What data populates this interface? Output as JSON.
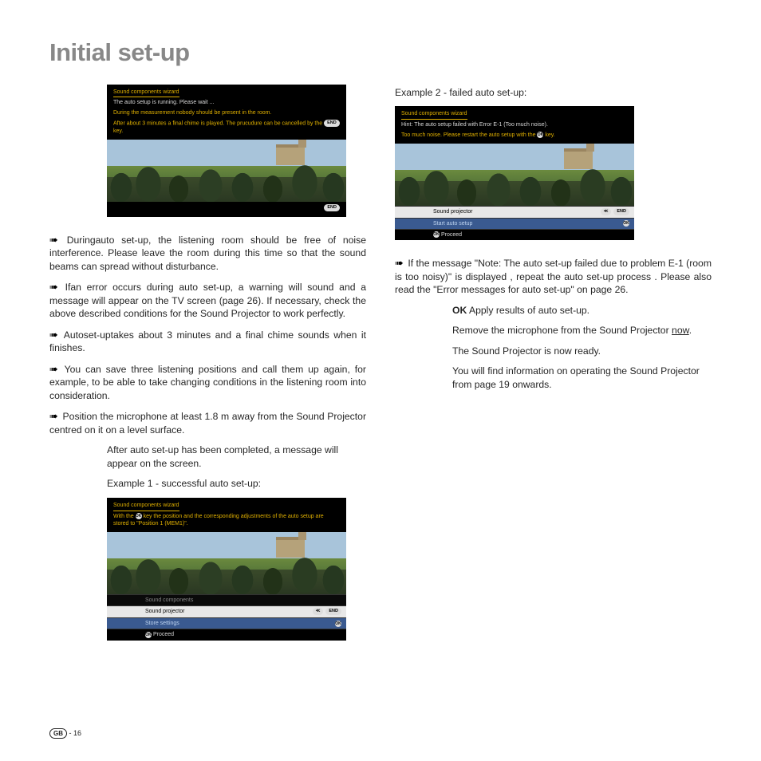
{
  "page": {
    "title": "Initial set-up",
    "footer_region": "GB",
    "footer_page": "16"
  },
  "left": {
    "p1": "Duringauto set-up, the listening room should be free of noise interference. Please leave the room during this time so that the sound beams can spread without disturbance.",
    "p2": "Ifan error occurs during auto set-up, a warning will sound and a message will appear on the TV screen (page 26). If necessary, check the above described conditions for the Sound Projector to work perfectly.",
    "p3": "Autoset-uptakes about 3 minutes and a final chime sounds when it finishes.",
    "p4": "You can save three listening positions and call them up again, for example, to be able to take changing conditions in the listening room into consideration.",
    "p5": "Position the microphone at least 1.8 m away from the Sound Projector centred on it on a level surface.",
    "indent1": "After auto set-up has been completed, a message will appear on the screen.",
    "example1_label": "Example 1 - successful auto set-up:"
  },
  "right": {
    "example2_label": "Example 2 - failed auto set-up:",
    "p1": "If the message \"Note: The auto set-up failed due to problem E-1 (room is too noisy)\" is displayed , repeat the auto set-up process . Please also read the \"Error messages for auto set-up\" on page 26.",
    "indent_ok_bold": "OK",
    "indent_ok_rest": " Apply results of auto set-up.",
    "indent2a": "Remove the microphone from the Sound Projector ",
    "indent2b_u": "now",
    "indent2c": ".",
    "indent3": "The Sound Projector is now ready.",
    "indent4": "You will find information on operating the Sound Projector from page 19 onwards."
  },
  "scr1": {
    "title": "Sound components wizard",
    "l1": "The auto setup is running. Please wait ...",
    "l2": "During the measurement nobody should be present in the room.",
    "l3a": "After about 3 minutes a final chime is played. The prucudure can be cancelled by the ",
    "l3b": " key.",
    "badge_end": "END"
  },
  "scr2": {
    "title": "Sound components wizard",
    "l1a": "With the ",
    "l1b": " key the position and the corresponding adjustments of the auto setup are stored to \"Position 1 (MEM1)\".",
    "menu": {
      "r1": "Sound components",
      "r2": "Sound projector",
      "r3": "Store settings",
      "proceed": "Proceed"
    },
    "badge_back": "≪",
    "badge_end": "END",
    "badge_ok": "OK"
  },
  "scr3": {
    "title": "Sound components wizard",
    "l1": "Hint: The auto setup failed with Error E-1 (Too much noise).",
    "l2a": "Too much noise. Please restart the auto setup with the ",
    "l2b": " key.",
    "menu": {
      "r1": "Sound projector",
      "r2": "Start auto setup",
      "proceed": "Proceed"
    },
    "badge_back": "≪",
    "badge_end": "END",
    "badge_ok": "OK"
  },
  "colors": {
    "title_gray": "#888888",
    "text": "#262626",
    "sky": "#a8c4da",
    "foliage_dark": "#263820",
    "building": "#b5a27a",
    "wizard_yellow": "#e0b000",
    "menu_blue": "#3a5a90"
  }
}
